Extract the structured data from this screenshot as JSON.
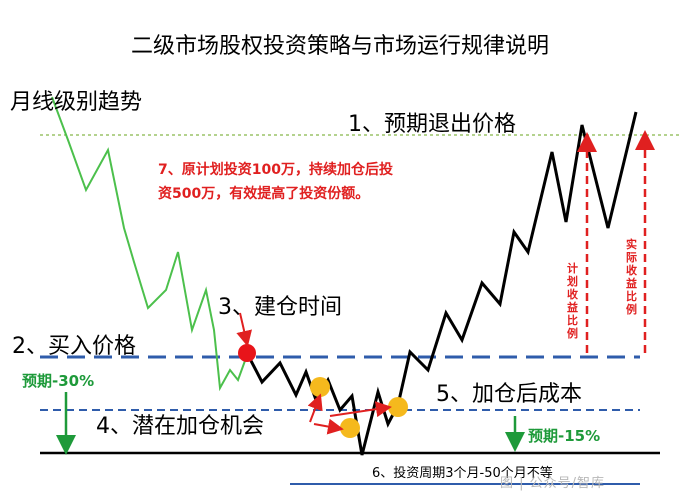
{
  "title": "二级市场股权投资策略与市场运行规律说明",
  "labels": {
    "monthly_trend": "月线级别趋势",
    "exit_price": "1、预期退出价格",
    "buy_price": "2、买入价格",
    "build_time": "3、建仓时间",
    "add_opportunity": "4、潜在加仓机会",
    "cost_after_add": "5、加仓后成本",
    "period": "6、投资周期3个月-50个月不等",
    "note": "7、原计划投资100万，持续加仓后投资500万，有效提高了投资份额。",
    "expected_30": "预期-30%",
    "expected_15": "预期-15%",
    "planned_return_ratio": "计划收益比例",
    "actual_return_ratio": "实际收益比例",
    "watermark": "图 | 公众号/智库"
  },
  "colors": {
    "price_line": "#000000",
    "trend_line": "#4cc04c",
    "buy_line": "#2f5cab",
    "exit_line": "#86b64a",
    "arrow_red": "#e02020",
    "arrow_green": "#1e9a3a",
    "entry_dot": "#e8141a",
    "add_dot": "#f5b91d"
  }
}
